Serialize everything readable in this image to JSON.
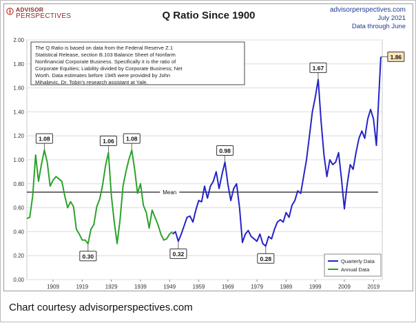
{
  "logo": {
    "line1": "ADVISOR",
    "line2": "PERSPECTIVES"
  },
  "source": {
    "site": "advisorperspectives.com",
    "date": "July 2021",
    "note": "Data through June"
  },
  "footer": {
    "caption": "Chart courtesy advisorperspectives.com"
  },
  "colors": {
    "quarterly": "#2323c8",
    "annual": "#2aa22a",
    "mean_line": "#1a1a1a",
    "highlight_box": "#fbe3b9"
  },
  "chart_data": {
    "type": "line",
    "title": "Q Ratio Since 1900",
    "xlabel": "",
    "ylabel": "",
    "xlim": [
      1900,
      2022
    ],
    "ylim": [
      0,
      2
    ],
    "x_ticks": [
      "1909",
      "1919",
      "1929",
      "1939",
      "1949",
      "1959",
      "1969",
      "1979",
      "1989",
      "1999",
      "2009",
      "2019"
    ],
    "y_ticks": [
      "0.00",
      "0.20",
      "0.40",
      "0.60",
      "0.80",
      "1.00",
      "1.20",
      "1.40",
      "1.60",
      "1.80",
      "2.00"
    ],
    "grid": "horizontal",
    "legend_position": "bottom-right",
    "note": "The Q Ratio is based on data from the Federal Reserve Z.1 Statistical Release, section B.103 Balance Sheet of Nonfarm Nonfinancial Corporate Business. Specifically it is the ratio of Corporate Equities; Liability divided by Corporate Business; Net Worth. Data estimates before 1945 were provided by John Mihaljevic, Dr. Tobin's research assistant at Yale.",
    "mean": {
      "label": "Mean",
      "value": 0.73
    },
    "series": [
      {
        "name": "Annual Data",
        "color": "#2aa22a",
        "points": [
          [
            1900,
            0.51
          ],
          [
            1901,
            0.52
          ],
          [
            1902,
            0.7
          ],
          [
            1903,
            1.04
          ],
          [
            1904,
            0.82
          ],
          [
            1905,
            0.96
          ],
          [
            1906,
            1.08
          ],
          [
            1907,
            0.98
          ],
          [
            1908,
            0.78
          ],
          [
            1909,
            0.83
          ],
          [
            1910,
            0.86
          ],
          [
            1911,
            0.84
          ],
          [
            1912,
            0.82
          ],
          [
            1913,
            0.7
          ],
          [
            1914,
            0.6
          ],
          [
            1915,
            0.65
          ],
          [
            1916,
            0.61
          ],
          [
            1917,
            0.42
          ],
          [
            1918,
            0.38
          ],
          [
            1919,
            0.33
          ],
          [
            1920,
            0.33
          ],
          [
            1921,
            0.3
          ],
          [
            1922,
            0.42
          ],
          [
            1923,
            0.46
          ],
          [
            1924,
            0.61
          ],
          [
            1925,
            0.67
          ],
          [
            1926,
            0.79
          ],
          [
            1927,
            0.95
          ],
          [
            1928,
            1.06
          ],
          [
            1929,
            0.7
          ],
          [
            1930,
            0.48
          ],
          [
            1931,
            0.3
          ],
          [
            1932,
            0.5
          ],
          [
            1933,
            0.78
          ],
          [
            1934,
            0.9
          ],
          [
            1935,
            1.0
          ],
          [
            1936,
            1.08
          ],
          [
            1937,
            0.92
          ],
          [
            1938,
            0.72
          ],
          [
            1939,
            0.8
          ],
          [
            1940,
            0.62
          ],
          [
            1941,
            0.56
          ],
          [
            1942,
            0.43
          ],
          [
            1943,
            0.58
          ],
          [
            1944,
            0.52
          ],
          [
            1945,
            0.46
          ],
          [
            1946,
            0.38
          ],
          [
            1947,
            0.33
          ],
          [
            1948,
            0.34
          ],
          [
            1949,
            0.38
          ],
          [
            1950,
            0.4
          ]
        ]
      },
      {
        "name": "Quarterly Data",
        "color": "#2323c8",
        "points": [
          [
            1950,
            0.38
          ],
          [
            1951,
            0.4
          ],
          [
            1952,
            0.32
          ],
          [
            1953,
            0.38
          ],
          [
            1954,
            0.45
          ],
          [
            1955,
            0.52
          ],
          [
            1956,
            0.53
          ],
          [
            1957,
            0.48
          ],
          [
            1958,
            0.58
          ],
          [
            1959,
            0.66
          ],
          [
            1960,
            0.65
          ],
          [
            1961,
            0.78
          ],
          [
            1962,
            0.68
          ],
          [
            1963,
            0.78
          ],
          [
            1964,
            0.82
          ],
          [
            1965,
            0.9
          ],
          [
            1966,
            0.76
          ],
          [
            1967,
            0.88
          ],
          [
            1968,
            0.98
          ],
          [
            1969,
            0.8
          ],
          [
            1970,
            0.66
          ],
          [
            1971,
            0.76
          ],
          [
            1972,
            0.8
          ],
          [
            1973,
            0.6
          ],
          [
            1974,
            0.31
          ],
          [
            1975,
            0.38
          ],
          [
            1976,
            0.41
          ],
          [
            1977,
            0.36
          ],
          [
            1978,
            0.34
          ],
          [
            1979,
            0.32
          ],
          [
            1980,
            0.38
          ],
          [
            1981,
            0.3
          ],
          [
            1982,
            0.28
          ],
          [
            1983,
            0.36
          ],
          [
            1984,
            0.34
          ],
          [
            1985,
            0.42
          ],
          [
            1986,
            0.48
          ],
          [
            1987,
            0.5
          ],
          [
            1988,
            0.48
          ],
          [
            1989,
            0.56
          ],
          [
            1990,
            0.52
          ],
          [
            1991,
            0.62
          ],
          [
            1992,
            0.66
          ],
          [
            1993,
            0.74
          ],
          [
            1994,
            0.72
          ],
          [
            1995,
            0.86
          ],
          [
            1996,
            1.0
          ],
          [
            1997,
            1.2
          ],
          [
            1998,
            1.4
          ],
          [
            1999,
            1.52
          ],
          [
            2000,
            1.67
          ],
          [
            2001,
            1.32
          ],
          [
            2002,
            1.04
          ],
          [
            2003,
            0.86
          ],
          [
            2004,
            1.0
          ],
          [
            2005,
            0.96
          ],
          [
            2006,
            0.98
          ],
          [
            2007,
            1.06
          ],
          [
            2008,
            0.84
          ],
          [
            2009,
            0.59
          ],
          [
            2010,
            0.8
          ],
          [
            2011,
            0.96
          ],
          [
            2012,
            0.92
          ],
          [
            2013,
            1.06
          ],
          [
            2014,
            1.18
          ],
          [
            2015,
            1.24
          ],
          [
            2016,
            1.18
          ],
          [
            2017,
            1.34
          ],
          [
            2018,
            1.42
          ],
          [
            2019,
            1.34
          ],
          [
            2020,
            1.12
          ],
          [
            2020.5,
            1.38
          ],
          [
            2021,
            1.62
          ],
          [
            2021.5,
            1.86
          ]
        ]
      }
    ],
    "annotations": [
      {
        "text": "1.08",
        "x": 1906,
        "y": 1.08,
        "highlight": false
      },
      {
        "text": "0.30",
        "x": 1921,
        "y": 0.3,
        "highlight": false
      },
      {
        "text": "1.06",
        "x": 1928,
        "y": 1.06,
        "highlight": false
      },
      {
        "text": "1.08",
        "x": 1936,
        "y": 1.08,
        "highlight": false
      },
      {
        "text": "0.32",
        "x": 1952,
        "y": 0.32,
        "highlight": false
      },
      {
        "text": "0.98",
        "x": 1968,
        "y": 0.98,
        "highlight": false
      },
      {
        "text": "0.28",
        "x": 1982,
        "y": 0.28,
        "highlight": false
      },
      {
        "text": "1.67",
        "x": 2000,
        "y": 1.67,
        "highlight": false
      },
      {
        "text": "1.86",
        "x": 2021.5,
        "y": 1.86,
        "highlight": true
      }
    ]
  }
}
